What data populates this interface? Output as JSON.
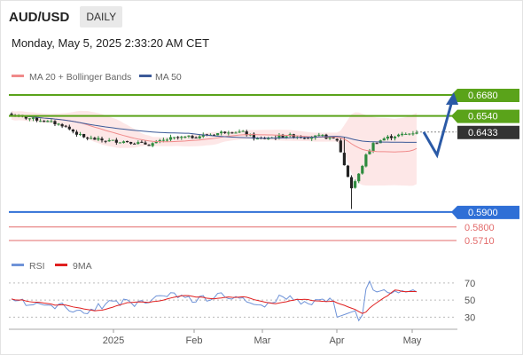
{
  "header": {
    "symbol": "AUD/USD",
    "timeframe": "DAILY",
    "datetime": "Monday, May 5, 2025 2:33:20 AM CET"
  },
  "legend": {
    "bollinger": "MA 20 + Bollinger Bands",
    "ma50": "MA 50",
    "rsi": "RSI",
    "rsi_ma": "9MA"
  },
  "colors": {
    "green_level": "#5aa31a",
    "blue_level": "#2f6fd6",
    "red_level": "#e36b6b",
    "current_price": "#333333",
    "candle_up": "#2e8b3e",
    "candle_down": "#222222",
    "band_fill": "#fde3e3",
    "ma20": "#f08a8a",
    "ma50": "#3c5a98",
    "rsi": "#6f93d8",
    "rsi_ma": "#e02020",
    "arrow": "#2b5aa6"
  },
  "chart_data": [
    {
      "type": "candlestick",
      "title": "AUD/USD",
      "timeframe": "DAILY",
      "x_ticks": [
        "2025",
        "Feb",
        "Mar",
        "Apr",
        "May"
      ],
      "ylim": [
        0.567,
        0.675
      ],
      "levels": [
        {
          "value": 0.668,
          "label": "0.6680",
          "kind": "resistance",
          "color": "#5aa31a"
        },
        {
          "value": 0.654,
          "label": "0.6540",
          "kind": "resistance",
          "color": "#5aa31a"
        },
        {
          "value": 0.6433,
          "label": "0.6433",
          "kind": "current",
          "color": "#333333"
        },
        {
          "value": 0.59,
          "label": "0.5900",
          "kind": "support",
          "color": "#2f6fd6"
        },
        {
          "value": 0.58,
          "label": "0.5800",
          "kind": "support",
          "color": "#e36b6b"
        },
        {
          "value": 0.571,
          "label": "0.5710",
          "kind": "support",
          "color": "#e36b6b"
        }
      ],
      "series": [
        {
          "name": "MA 20 + Bollinger Bands"
        },
        {
          "name": "MA 50"
        }
      ],
      "forecast": {
        "from": 0.6433,
        "dip_to": 0.628,
        "target": 0.668
      }
    },
    {
      "type": "line",
      "title": "RSI",
      "yticks": [
        30,
        50,
        70
      ],
      "ylim": [
        20,
        75
      ],
      "series": [
        {
          "name": "RSI"
        },
        {
          "name": "9MA"
        }
      ]
    }
  ]
}
